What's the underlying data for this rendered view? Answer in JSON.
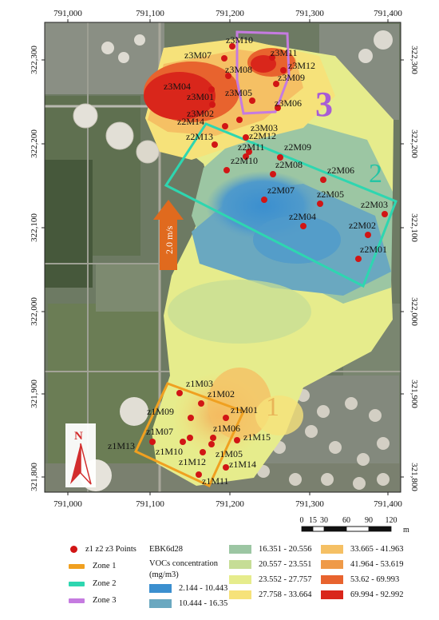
{
  "map": {
    "x_ticks": [
      "791,000",
      "791,100",
      "791,200",
      "791,300",
      "791,400"
    ],
    "y_ticks": [
      "322,300",
      "322,200",
      "322,100",
      "322,000",
      "321,900",
      "321,800"
    ],
    "wind_label": "2.0 m/s",
    "north_label": "N",
    "zone_numbers": [
      "1",
      "2",
      "3"
    ],
    "scale": {
      "ticks": [
        "0",
        "15",
        "30",
        "60",
        "90",
        "120"
      ],
      "unit": "m"
    },
    "points": [
      {
        "label": "z3M10"
      },
      {
        "label": "z3M07"
      },
      {
        "label": "z3M11"
      },
      {
        "label": "z3M12"
      },
      {
        "label": "z3M08"
      },
      {
        "label": "z3M09"
      },
      {
        "label": "z3M04"
      },
      {
        "label": "z3M05"
      },
      {
        "label": "z3M01"
      },
      {
        "label": "z3M06"
      },
      {
        "label": "z3M02"
      },
      {
        "label": "z2M14"
      },
      {
        "label": "z3M03"
      },
      {
        "label": "z2M13"
      },
      {
        "label": "z2M12"
      },
      {
        "label": "z2M11"
      },
      {
        "label": "z2M09"
      },
      {
        "label": "z2M10"
      },
      {
        "label": "z2M08"
      },
      {
        "label": "z2M06"
      },
      {
        "label": "z2M07"
      },
      {
        "label": "z2M05"
      },
      {
        "label": "z2M03"
      },
      {
        "label": "z2M04"
      },
      {
        "label": "z2M02"
      },
      {
        "label": "z2M01"
      },
      {
        "label": "z1M03"
      },
      {
        "label": "z1M02"
      },
      {
        "label": "z1M09"
      },
      {
        "label": "z1M01"
      },
      {
        "label": "z1M07"
      },
      {
        "label": "z1M06"
      },
      {
        "label": "z1M13"
      },
      {
        "label": "z1M15"
      },
      {
        "label": "z1M10"
      },
      {
        "label": "z1M05"
      },
      {
        "label": "z1M12"
      },
      {
        "label": "z1M14"
      },
      {
        "label": "z1M11"
      }
    ]
  },
  "legend": {
    "points_label": "z1 z2 z3 Points",
    "zone1_label": "Zone 1",
    "zone2_label": "Zone 2",
    "zone3_label": "Zone 3",
    "layer_name": "EBK6d28",
    "concentration_title": "VOCs concentration",
    "concentration_unit": "(mg/m3)",
    "classes": [
      {
        "range": "2.144 - 10.443",
        "color": "#3b8fcf"
      },
      {
        "range": "10.444 - 16.35",
        "color": "#6aa8c0"
      },
      {
        "range": "16.351 - 20.556",
        "color": "#9cc6a3"
      },
      {
        "range": "20.557 - 23.551",
        "color": "#c6dd96"
      },
      {
        "range": "23.552 - 27.757",
        "color": "#e6ec8c"
      },
      {
        "range": "27.758 - 33.664",
        "color": "#f6e27a"
      },
      {
        "range": "33.665 - 41.963",
        "color": "#f5c064"
      },
      {
        "range": "41.964 - 53.619",
        "color": "#ef9a48"
      },
      {
        "range": "53.62 - 69.993",
        "color": "#e8632e"
      },
      {
        "range": "69.994 - 92.992",
        "color": "#d9261b"
      }
    ],
    "zone_colors": {
      "zone1": "#f0a020",
      "zone2": "#2ed6b0",
      "zone3": "#c57be0"
    },
    "point_color": "#d11515"
  }
}
